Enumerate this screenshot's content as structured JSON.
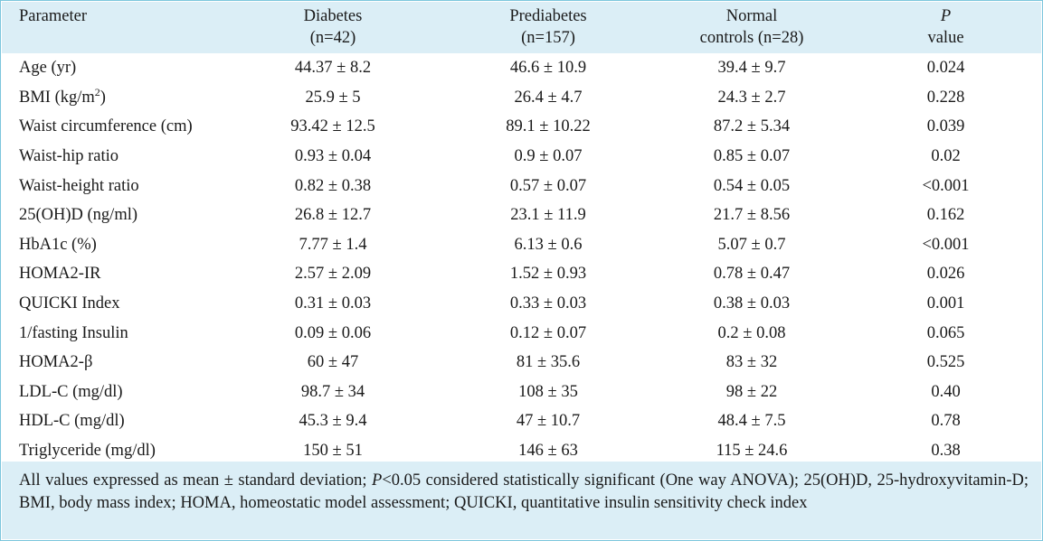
{
  "table": {
    "headers": {
      "parameter": "Parameter",
      "diabetes": {
        "line1": "Diabetes",
        "line2": "(n=42)"
      },
      "prediabetes": {
        "line1": "Prediabetes",
        "line2": "(n=157)"
      },
      "normal": {
        "line1": "Normal",
        "line2": "controls (n=28)"
      },
      "pvalue": {
        "line1": "P",
        "line2": "value"
      }
    },
    "rows": [
      {
        "parameter": "Age (yr)",
        "diabetes": "44.37 ± 8.2",
        "prediabetes": "46.6 ± 10.9",
        "normal": "39.4 ± 9.7",
        "p": "0.024"
      },
      {
        "parameter": "BMI (kg/m",
        "parameter_sup": "2",
        "parameter_after": ")",
        "diabetes": "25.9 ± 5",
        "prediabetes": "26.4 ± 4.7",
        "normal": "24.3 ± 2.7",
        "p": "0.228"
      },
      {
        "parameter": "Waist circumference (cm)",
        "diabetes": "93.42 ± 12.5",
        "prediabetes": "89.1 ± 10.22",
        "normal": "87.2 ± 5.34",
        "p": "0.039"
      },
      {
        "parameter": "Waist-hip ratio",
        "diabetes": "0.93 ± 0.04",
        "prediabetes": "0.9 ± 0.07",
        "normal": "0.85 ± 0.07",
        "p": "0.02"
      },
      {
        "parameter": "Waist-height ratio",
        "diabetes": "0.82 ± 0.38",
        "prediabetes": "0.57 ± 0.07",
        "normal": "0.54 ± 0.05",
        "p": "<0.001"
      },
      {
        "parameter": "25(OH)D (ng/ml)",
        "diabetes": "26.8 ± 12.7",
        "prediabetes": "23.1 ± 11.9",
        "normal": "21.7 ± 8.56",
        "p": "0.162"
      },
      {
        "parameter": "HbA1c (%)",
        "diabetes": "7.77 ± 1.4",
        "prediabetes": "6.13 ± 0.6",
        "normal": "5.07 ± 0.7",
        "p": "<0.001"
      },
      {
        "parameter": "HOMA2-IR",
        "diabetes": "2.57 ± 2.09",
        "prediabetes": "1.52 ± 0.93",
        "normal": "0.78 ± 0.47",
        "p": "0.026"
      },
      {
        "parameter": "QUICKI Index",
        "diabetes": "0.31 ± 0.03",
        "prediabetes": "0.33 ± 0.03",
        "normal": "0.38 ± 0.03",
        "p": "0.001"
      },
      {
        "parameter": "1/fasting Insulin",
        "diabetes": "0.09 ± 0.06",
        "prediabetes": "0.12 ± 0.07",
        "normal": "0.2 ± 0.08",
        "p": "0.065"
      },
      {
        "parameter": "HOMA2-β",
        "diabetes": "60 ± 47",
        "prediabetes": "81 ± 35.6",
        "normal": "83 ± 32",
        "p": "0.525"
      },
      {
        "parameter": "LDL-C (mg/dl)",
        "diabetes": "98.7 ± 34",
        "prediabetes": "108 ± 35",
        "normal": "98 ± 22",
        "p": "0.40"
      },
      {
        "parameter": "HDL-C (mg/dl)",
        "diabetes": "45.3 ± 9.4",
        "prediabetes": "47 ± 10.7",
        "normal": "48.4 ± 7.5",
        "p": "0.78"
      },
      {
        "parameter": "Triglyceride (mg/dl)",
        "diabetes": "150 ± 51",
        "prediabetes": "146 ± 63",
        "normal": "115 ± 24.6",
        "p": "0.38"
      }
    ]
  },
  "footnote": {
    "part1": "All values expressed as mean ± standard deviation; ",
    "p_italic": "P",
    "part2": "<0.05 considered statistically significant (One way ANOVA); 25(OH)D, 25-hydroxyvitamin-D; BMI, body mass index; HOMA, homeostatic model assessment; QUICKI, quantitative insulin sensitivity check index"
  },
  "colors": {
    "header_bg": "#dbeef6",
    "border": "#7cc6dc",
    "text": "#1a1a1a"
  }
}
